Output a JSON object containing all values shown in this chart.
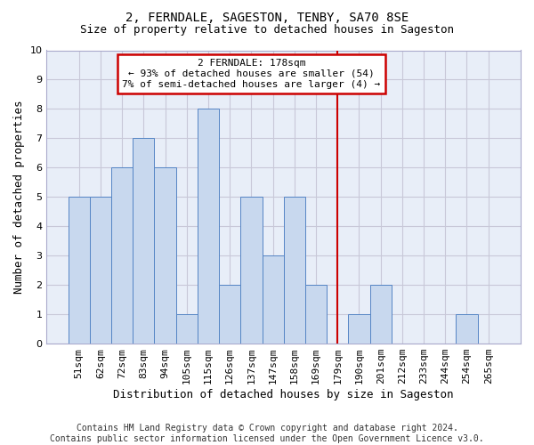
{
  "title": "2, FERNDALE, SAGESTON, TENBY, SA70 8SE",
  "subtitle": "Size of property relative to detached houses in Sageston",
  "xlabel": "Distribution of detached houses by size in Sageston",
  "ylabel": "Number of detached properties",
  "footer": "Contains HM Land Registry data © Crown copyright and database right 2024.\nContains public sector information licensed under the Open Government Licence v3.0.",
  "categories": [
    "51sqm",
    "62sqm",
    "72sqm",
    "83sqm",
    "94sqm",
    "105sqm",
    "115sqm",
    "126sqm",
    "137sqm",
    "147sqm",
    "158sqm",
    "169sqm",
    "179sqm",
    "190sqm",
    "201sqm",
    "212sqm",
    "233sqm",
    "244sqm",
    "254sqm",
    "265sqm"
  ],
  "values": [
    5,
    5,
    6,
    7,
    6,
    1,
    8,
    2,
    5,
    3,
    5,
    2,
    0,
    1,
    2,
    0,
    0,
    0,
    1,
    0
  ],
  "bar_color": "#c8d8ee",
  "bar_edge_color": "#5585c5",
  "ylim": [
    0,
    10
  ],
  "yticks": [
    0,
    1,
    2,
    3,
    4,
    5,
    6,
    7,
    8,
    9,
    10
  ],
  "grid_color": "#c8c8d8",
  "bg_color": "#e8eef8",
  "annotation_text": "2 FERNDALE: 178sqm\n← 93% of detached houses are smaller (54)\n7% of semi-detached houses are larger (4) →",
  "annotation_box_color": "#cc0000",
  "vline_x_index": 12,
  "vline_color": "#cc0000",
  "title_fontsize": 10,
  "subtitle_fontsize": 9,
  "ylabel_fontsize": 9,
  "xlabel_fontsize": 9,
  "tick_fontsize": 8,
  "annot_fontsize": 8,
  "footer_fontsize": 7
}
